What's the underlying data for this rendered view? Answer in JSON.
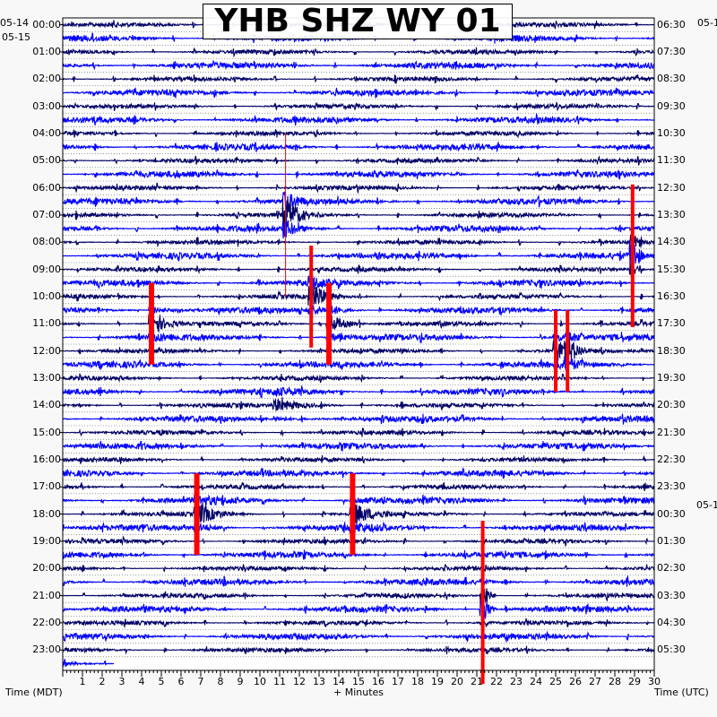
{
  "chart_data": {
    "type": "line",
    "title": "YHB SHZ WY 01",
    "xlabel": "+ Minutes",
    "ylabel_left": "Time (MDT)",
    "ylabel_right": "Time (UTC)",
    "xlim": [
      0,
      30
    ],
    "x_ticks": [
      "1",
      "2",
      "3",
      "4",
      "5",
      "6",
      "7",
      "8",
      "9",
      "10",
      "11",
      "12",
      "13",
      "14",
      "15",
      "16",
      "17",
      "18",
      "19",
      "20",
      "21",
      "22",
      "23",
      "24",
      "25",
      "26",
      "27",
      "28",
      "29",
      "30"
    ],
    "left_date_labels": [
      "05-14",
      "05-15"
    ],
    "right_date_labels": [
      "05-1",
      "05-1"
    ],
    "left_hour_labels": [
      "00:00",
      "01:00",
      "02:00",
      "03:00",
      "04:00",
      "05:00",
      "06:00",
      "07:00",
      "08:00",
      "09:00",
      "10:00",
      "11:00",
      "12:00",
      "13:00",
      "14:00",
      "15:00",
      "16:00",
      "17:00",
      "18:00",
      "19:00",
      "20:00",
      "21:00",
      "22:00",
      "23:00"
    ],
    "right_hour_labels": [
      "06:30",
      "07:30",
      "08:30",
      "09:30",
      "10:30",
      "11:30",
      "12:30",
      "13:30",
      "14:30",
      "15:30",
      "16:30",
      "17:30",
      "18:30",
      "19:30",
      "20:30",
      "21:30",
      "22:30",
      "23:30",
      "00:30",
      "01:30",
      "02:30",
      "03:30",
      "04:30",
      "05:30"
    ],
    "trace_rows": 48,
    "row_minutes": 30,
    "trace_colors": [
      "#000066",
      "#0000ff"
    ],
    "clip_color": "#ff0000",
    "grid": true,
    "events": [
      {
        "row": 14.5,
        "minute": 11.3,
        "amplitude": 8,
        "duration": 1.2,
        "clipped": false,
        "spike": true
      },
      {
        "row": 17.5,
        "minute": 28.9,
        "amplitude": 7,
        "duration": 0.6,
        "clipped": true
      },
      {
        "row": 20.5,
        "minute": 12.6,
        "amplitude": 5,
        "duration": 1.5,
        "clipped": true
      },
      {
        "row": 22.5,
        "minute": 4.5,
        "amplitude": 4,
        "duration": 1.6,
        "clipped": true
      },
      {
        "row": 22.5,
        "minute": 13.5,
        "amplitude": 4,
        "duration": 1.8,
        "clipped": true
      },
      {
        "row": 24.5,
        "minute": 25.0,
        "amplitude": 4,
        "duration": 1.5,
        "clipped": true
      },
      {
        "row": 24.5,
        "minute": 25.6,
        "amplitude": 4,
        "duration": 1.0,
        "clipped": true
      },
      {
        "row": 28.5,
        "minute": 10.8,
        "amplitude": 2,
        "duration": 3.5,
        "clipped": false
      },
      {
        "row": 36.5,
        "minute": 6.8,
        "amplitude": 4,
        "duration": 2.0,
        "clipped": true
      },
      {
        "row": 36.5,
        "minute": 14.7,
        "amplitude": 4,
        "duration": 2.0,
        "clipped": true
      },
      {
        "row": 43.0,
        "minute": 21.3,
        "amplitude": 8,
        "duration": 0.7,
        "clipped": true
      }
    ],
    "last_row_end_minute": 2.6
  }
}
